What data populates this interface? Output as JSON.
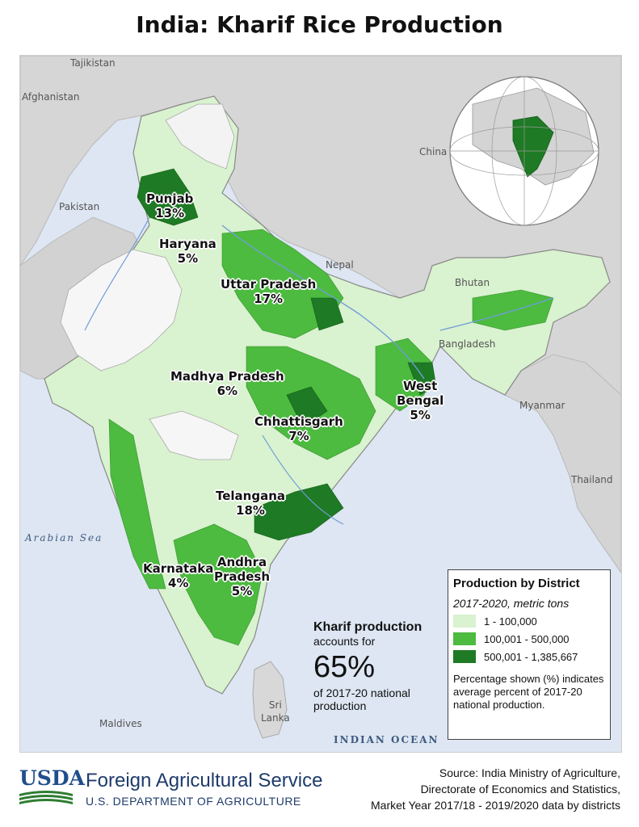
{
  "title": "India: Kharif Rice Production",
  "map_labels": {
    "tajikistan": "Tajikistan",
    "afghanistan": "Afghanistan",
    "pakistan": "Pakistan",
    "china": "China",
    "nepal": "Nepal",
    "bhutan": "Bhutan",
    "bangladesh": "Bangladesh",
    "myanmar": "Myanmar",
    "thailand": "Thailand",
    "sri_lanka": "Sri\nLanka",
    "maldives": "Maldives",
    "arabian_sea": "Arabian Sea",
    "indian_ocean": "INDIAN OCEAN"
  },
  "states": [
    {
      "name": "Punjab",
      "share": "13%"
    },
    {
      "name": "Haryana",
      "share": "5%"
    },
    {
      "name": "Uttar Pradesh",
      "share": "17%"
    },
    {
      "name": "West\nBengal",
      "share": "5%"
    },
    {
      "name": "Madhya Pradesh",
      "share": "6%"
    },
    {
      "name": "Chhattisgarh",
      "share": "7%"
    },
    {
      "name": "Telangana",
      "share": "18%"
    },
    {
      "name": "Andhra\nPradesh",
      "share": "5%"
    },
    {
      "name": "Karnataka",
      "share": "4%"
    }
  ],
  "callout": {
    "heading": "Kharif production",
    "line1": "accounts for",
    "value": "65%",
    "line2": "of 2017-20 national",
    "line3": "production"
  },
  "legend": {
    "title": "Production by District",
    "subtitle": "2017-2020, metric tons",
    "classes": [
      {
        "label": "1 - 100,000",
        "color": "#d9f2cf"
      },
      {
        "label": "100,001 - 500,000",
        "color": "#4cbb3f"
      },
      {
        "label": "500,001 - 1,385,667",
        "color": "#1e7a24"
      }
    ],
    "note": "Percentage shown (%) indicates average percent of 2017-20 national production."
  },
  "colors": {
    "water": "#dde6f2",
    "land_neighbors": "#d6d6d6",
    "no_data": "#ffffff",
    "low": "#d9f2cf",
    "mid": "#4cbb3f",
    "high": "#1e7a24",
    "usda_blue": "#1f4e8c",
    "usda_green": "#2e7d32"
  },
  "footer": {
    "logo_text": "USDA",
    "agency": "Foreign Agricultural Service",
    "department": "U.S. DEPARTMENT OF AGRICULTURE",
    "source_lines": [
      "Source: India Ministry of Agriculture,",
      "Directorate of Economics and Statistics,",
      "Market Year 2017/18 - 2019/2020 data by districts"
    ]
  }
}
